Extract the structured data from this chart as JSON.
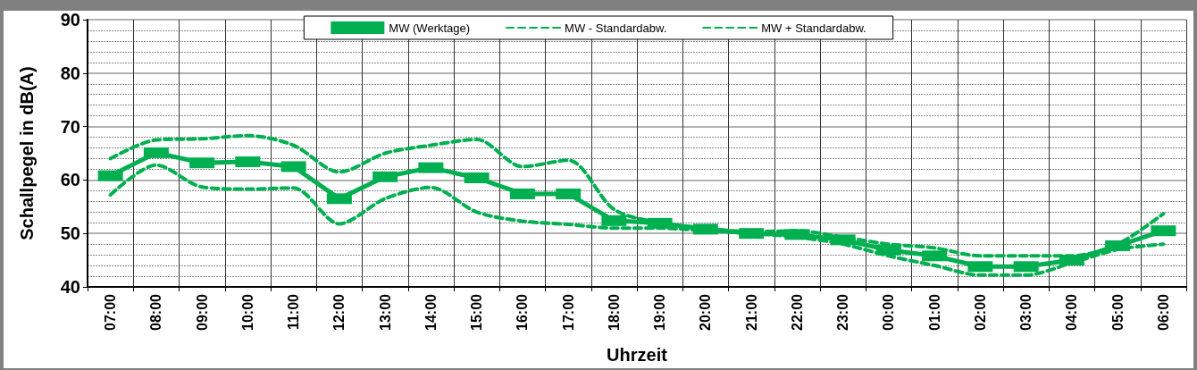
{
  "chart_data": {
    "type": "line",
    "xlabel": "Uhrzeit",
    "ylabel": "Schallpegel in dB(A)",
    "categories": [
      "07:00",
      "08:00",
      "09:00",
      "10:00",
      "11:00",
      "12:00",
      "13:00",
      "14:00",
      "15:00",
      "16:00",
      "17:00",
      "18:00",
      "19:00",
      "20:00",
      "21:00",
      "22:00",
      "23:00",
      "00:00",
      "01:00",
      "02:00",
      "03:00",
      "04:00",
      "05:00",
      "06:00"
    ],
    "series": [
      {
        "name": "MW (Werktage)",
        "color": "#00b050",
        "line_style": "solid",
        "marker": "square",
        "values": [
          60.8,
          65.1,
          63.2,
          63.4,
          62.5,
          56.5,
          60.6,
          62.3,
          60.4,
          57.4,
          57.4,
          52.4,
          51.9,
          50.8,
          50.0,
          49.8,
          48.8,
          46.9,
          45.8,
          43.8,
          43.8,
          45.0,
          47.7,
          50.5
        ]
      },
      {
        "name": "MW - Standardabw.",
        "color": "#00b050",
        "line_style": "dashed",
        "marker": "none",
        "values": [
          57.2,
          62.8,
          58.7,
          58.3,
          58.5,
          51.8,
          56.5,
          58.6,
          54.0,
          52.3,
          51.7,
          51.0,
          51.0,
          50.5,
          50.0,
          49.3,
          48.0,
          45.8,
          44.0,
          42.2,
          42.2,
          44.5,
          47.0,
          48.0
        ]
      },
      {
        "name": "MW + Standardabw.",
        "color": "#00b050",
        "line_style": "dashed",
        "marker": "none",
        "values": [
          64.0,
          67.5,
          67.7,
          68.3,
          66.5,
          61.5,
          65.0,
          66.5,
          67.6,
          62.5,
          63.7,
          54.5,
          52.0,
          51.0,
          50.3,
          50.5,
          49.3,
          48.0,
          47.3,
          45.8,
          45.8,
          45.8,
          48.0,
          53.7
        ]
      }
    ],
    "ylim": [
      40,
      90
    ],
    "yticks": [
      40,
      50,
      60,
      70,
      80,
      90
    ],
    "grid": true,
    "legend": "top"
  }
}
